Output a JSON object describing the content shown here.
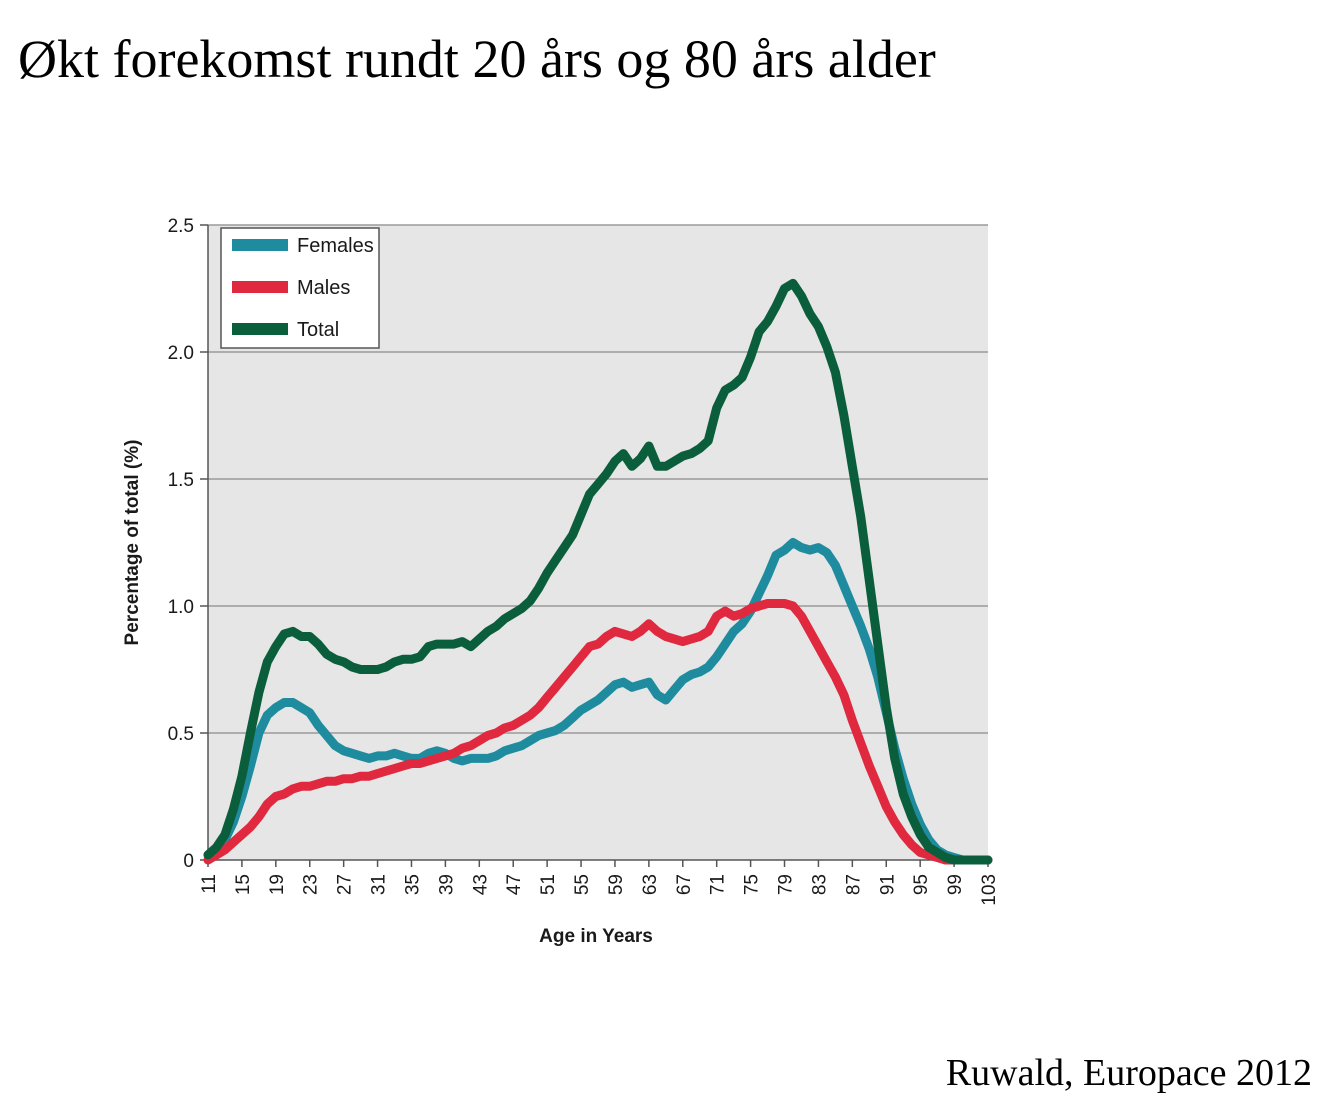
{
  "slide": {
    "title": "Økt forekomst rundt 20 års og 80 års alder",
    "citation": "Ruwald, Europace 2012"
  },
  "chart_data": {
    "type": "line",
    "title": "",
    "xlabel": "Age in Years",
    "ylabel": "Percentage of total (%)",
    "xlim": [
      11,
      103
    ],
    "ylim": [
      0,
      2.5
    ],
    "x_ticks": [
      "11",
      "15",
      "19",
      "23",
      "27",
      "31",
      "35",
      "39",
      "43",
      "47",
      "51",
      "55",
      "59",
      "63",
      "67",
      "71",
      "75",
      "79",
      "83",
      "87",
      "91",
      "95",
      "99",
      "103"
    ],
    "y_ticks": [
      "0",
      "0.5",
      "1.0",
      "1.5",
      "2.0",
      "2.5"
    ],
    "grid": "horizontal",
    "legend_position": "top-left",
    "x": [
      11,
      12,
      13,
      14,
      15,
      16,
      17,
      18,
      19,
      20,
      21,
      22,
      23,
      24,
      25,
      26,
      27,
      28,
      29,
      30,
      31,
      32,
      33,
      34,
      35,
      36,
      37,
      38,
      39,
      40,
      41,
      42,
      43,
      44,
      45,
      46,
      47,
      48,
      49,
      50,
      51,
      52,
      53,
      54,
      55,
      56,
      57,
      58,
      59,
      60,
      61,
      62,
      63,
      64,
      65,
      66,
      67,
      68,
      69,
      70,
      71,
      72,
      73,
      74,
      75,
      76,
      77,
      78,
      79,
      80,
      81,
      82,
      83,
      84,
      85,
      86,
      87,
      88,
      89,
      90,
      91,
      92,
      93,
      94,
      95,
      96,
      97,
      98,
      99,
      100,
      101,
      102,
      103
    ],
    "series": [
      {
        "name": "Females",
        "color": "#1e8c9e",
        "values": [
          0.02,
          0.04,
          0.08,
          0.15,
          0.25,
          0.37,
          0.5,
          0.57,
          0.6,
          0.62,
          0.62,
          0.6,
          0.58,
          0.53,
          0.49,
          0.45,
          0.43,
          0.42,
          0.41,
          0.4,
          0.41,
          0.41,
          0.42,
          0.41,
          0.4,
          0.4,
          0.42,
          0.43,
          0.42,
          0.4,
          0.39,
          0.4,
          0.4,
          0.4,
          0.41,
          0.43,
          0.44,
          0.45,
          0.47,
          0.49,
          0.5,
          0.51,
          0.53,
          0.56,
          0.59,
          0.61,
          0.63,
          0.66,
          0.69,
          0.7,
          0.68,
          0.69,
          0.7,
          0.65,
          0.63,
          0.67,
          0.71,
          0.73,
          0.74,
          0.76,
          0.8,
          0.85,
          0.9,
          0.93,
          0.98,
          1.05,
          1.12,
          1.2,
          1.22,
          1.25,
          1.23,
          1.22,
          1.23,
          1.21,
          1.16,
          1.08,
          1.0,
          0.92,
          0.83,
          0.72,
          0.58,
          0.44,
          0.32,
          0.22,
          0.14,
          0.08,
          0.04,
          0.02,
          0.01,
          0.0,
          0.0,
          0.0,
          0.0
        ]
      },
      {
        "name": "Males",
        "color": "#e0283e",
        "values": [
          0.0,
          0.02,
          0.04,
          0.07,
          0.1,
          0.13,
          0.17,
          0.22,
          0.25,
          0.26,
          0.28,
          0.29,
          0.29,
          0.3,
          0.31,
          0.31,
          0.32,
          0.32,
          0.33,
          0.33,
          0.34,
          0.35,
          0.36,
          0.37,
          0.38,
          0.38,
          0.39,
          0.4,
          0.41,
          0.42,
          0.44,
          0.45,
          0.47,
          0.49,
          0.5,
          0.52,
          0.53,
          0.55,
          0.57,
          0.6,
          0.64,
          0.68,
          0.72,
          0.76,
          0.8,
          0.84,
          0.85,
          0.88,
          0.9,
          0.89,
          0.88,
          0.9,
          0.93,
          0.9,
          0.88,
          0.87,
          0.86,
          0.87,
          0.88,
          0.9,
          0.96,
          0.98,
          0.96,
          0.97,
          0.99,
          1.0,
          1.01,
          1.01,
          1.01,
          1.0,
          0.96,
          0.9,
          0.84,
          0.78,
          0.72,
          0.65,
          0.55,
          0.46,
          0.37,
          0.29,
          0.21,
          0.15,
          0.1,
          0.06,
          0.03,
          0.02,
          0.01,
          0.0,
          0.0,
          0.0,
          0.0,
          0.0,
          0.0
        ]
      },
      {
        "name": "Total",
        "color": "#0b5e3c",
        "values": [
          0.02,
          0.05,
          0.1,
          0.2,
          0.33,
          0.5,
          0.66,
          0.78,
          0.84,
          0.89,
          0.9,
          0.88,
          0.88,
          0.85,
          0.81,
          0.79,
          0.78,
          0.76,
          0.75,
          0.75,
          0.75,
          0.76,
          0.78,
          0.79,
          0.79,
          0.8,
          0.84,
          0.85,
          0.85,
          0.85,
          0.86,
          0.84,
          0.87,
          0.9,
          0.92,
          0.95,
          0.97,
          0.99,
          1.02,
          1.07,
          1.13,
          1.18,
          1.23,
          1.28,
          1.36,
          1.44,
          1.48,
          1.52,
          1.57,
          1.6,
          1.55,
          1.58,
          1.63,
          1.55,
          1.55,
          1.57,
          1.59,
          1.6,
          1.62,
          1.65,
          1.78,
          1.85,
          1.87,
          1.9,
          1.98,
          2.08,
          2.12,
          2.18,
          2.25,
          2.27,
          2.22,
          2.15,
          2.1,
          2.02,
          1.92,
          1.75,
          1.55,
          1.35,
          1.1,
          0.85,
          0.6,
          0.4,
          0.26,
          0.17,
          0.1,
          0.05,
          0.03,
          0.01,
          0.0,
          0.0,
          0.0,
          0.0,
          0.0
        ]
      }
    ]
  }
}
